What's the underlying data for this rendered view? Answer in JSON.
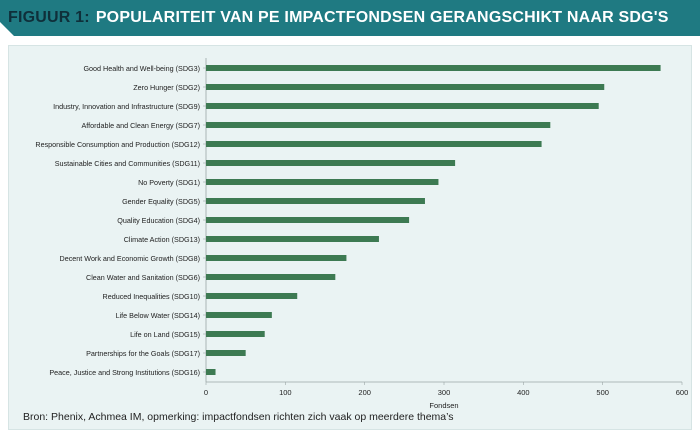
{
  "figure": {
    "label": "FIGUUR 1:",
    "title": "POPULARITEIT VAN PE IMPACTFONDSEN GERANGSCHIKT NAAR SDG'S",
    "source": "Bron: Phenix, Achmea IM, opmerking: impactfondsen richten zich vaak op meerdere thema’s"
  },
  "colors": {
    "header": "#1f7a82",
    "bar": "#3d7a52",
    "panel": "#eaf3f3"
  },
  "chart_data": {
    "type": "bar",
    "orientation": "horizontal",
    "categories": [
      "Good Health and Well-being (SDG3)",
      "Zero Hunger (SDG2)",
      "Industry, Innovation and Infrastructure (SDG9)",
      "Affordable and Clean Energy (SDG7)",
      "Responsible Consumption and Production (SDG12)",
      "Sustainable Cities and Communities (SDG11)",
      "No Poverty (SDG1)",
      "Gender Equality (SDG5)",
      "Quality Education (SDG4)",
      "Climate Action (SDG13)",
      "Decent Work and Economic Growth (SDG8)",
      "Clean Water and Sanitation (SDG6)",
      "Reduced Inequalities (SDG10)",
      "Life Below Water (SDG14)",
      "Life on Land (SDG15)",
      "Partnerships for the Goals (SDG17)",
      "Peace, Justice and Strong Institutions (SDG16)"
    ],
    "values": [
      573,
      502,
      495,
      434,
      423,
      314,
      293,
      276,
      256,
      218,
      177,
      163,
      115,
      83,
      74,
      50,
      12
    ],
    "xlabel": "Fondsen",
    "xlim": [
      0,
      600
    ],
    "xticks": [
      "0",
      "100",
      "200",
      "300",
      "400",
      "500",
      "600"
    ],
    "grid": false,
    "legend": "none"
  }
}
